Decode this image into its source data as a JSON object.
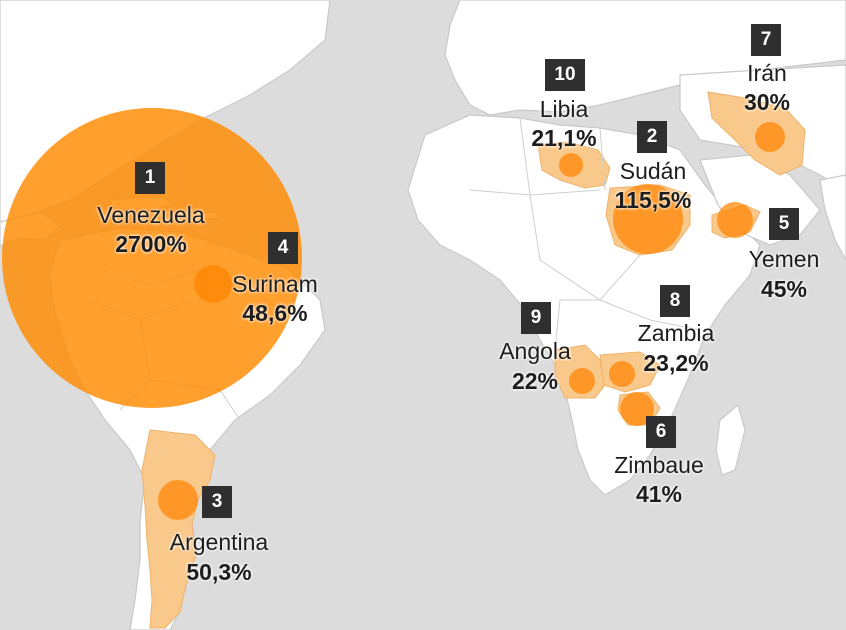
{
  "colors": {
    "sea": "#dcdcdc",
    "land": "#ffffff",
    "highlight_country": "#f9c98b",
    "bubble": "#ff8400",
    "badge": "#2f2f2f"
  },
  "countries": [
    {
      "rank": "1",
      "name": "Venezuela",
      "value": "2700%",
      "inflation_pct": 2700
    },
    {
      "rank": "2",
      "name": "Sudán",
      "value": "115,5%",
      "inflation_pct": 115.5
    },
    {
      "rank": "3",
      "name": "Argentina",
      "value": "50,3%",
      "inflation_pct": 50.3
    },
    {
      "rank": "4",
      "name": "Surinam",
      "value": "48,6%",
      "inflation_pct": 48.6
    },
    {
      "rank": "5",
      "name": "Yemen",
      "value": "45%",
      "inflation_pct": 45
    },
    {
      "rank": "6",
      "name": "Zimbaue",
      "value": "41%",
      "inflation_pct": 41
    },
    {
      "rank": "7",
      "name": "Irán",
      "value": "30%",
      "inflation_pct": 30
    },
    {
      "rank": "8",
      "name": "Zambia",
      "value": "23,2%",
      "inflation_pct": 23.2
    },
    {
      "rank": "9",
      "name": "Angola",
      "value": "22%",
      "inflation_pct": 22
    },
    {
      "rank": "10",
      "name": "Libia",
      "value": "21,1%",
      "inflation_pct": 21.1
    }
  ]
}
